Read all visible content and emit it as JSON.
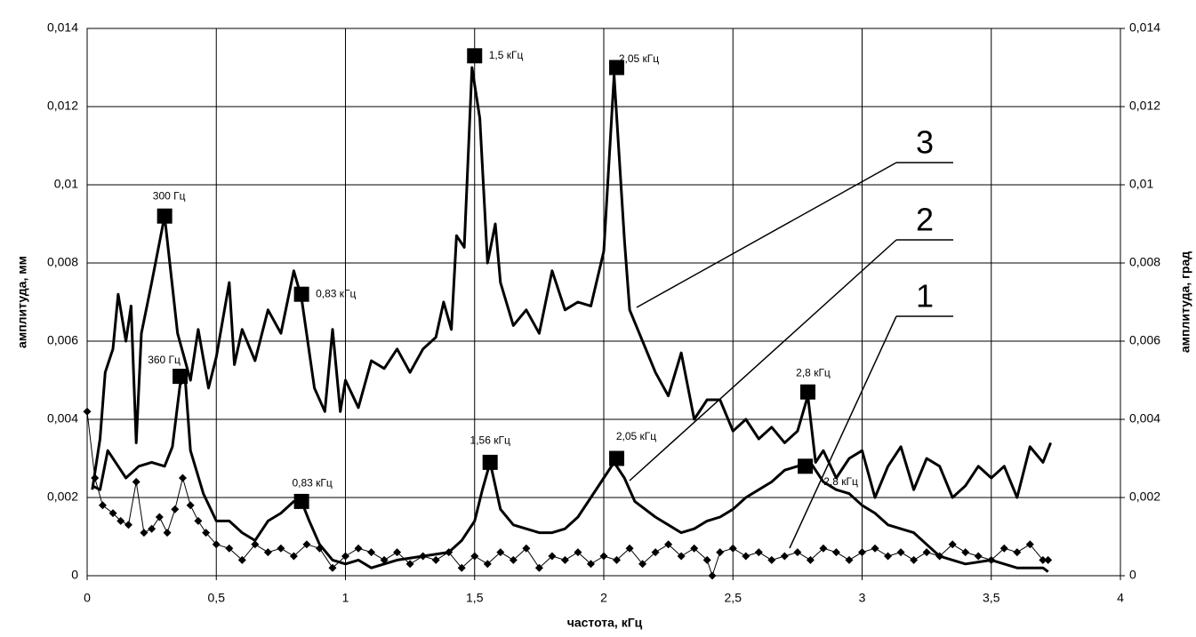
{
  "chart_data": {
    "type": "line",
    "xlabel": "частота, кГц",
    "ylabel": "амплитуда, мм",
    "y2label": "амплитуда, град",
    "xlim": [
      0,
      4
    ],
    "xticks": [
      0,
      {
        "value": 0.5,
        "label": "0,5"
      },
      1,
      {
        "value": 1.5,
        "label": "1,5"
      },
      2,
      {
        "value": 2.5,
        "label": "2,5"
      },
      3,
      {
        "value": 3.5,
        "label": "3,5"
      },
      4
    ],
    "ylim": [
      0,
      0.014
    ],
    "yticks": [
      0,
      {
        "value": 0.002,
        "label": "0,002"
      },
      {
        "value": 0.004,
        "label": "0,004"
      },
      {
        "value": 0.006,
        "label": "0,006"
      },
      {
        "value": 0.008,
        "label": "0,008"
      },
      {
        "value": 0.01,
        "label": "0,01"
      },
      {
        "value": 0.012,
        "label": "0,012"
      },
      {
        "value": 0.014,
        "label": "0,014"
      }
    ],
    "y2lim": [
      0,
      0.014
    ],
    "y2ticks": [
      0,
      {
        "value": 0.002,
        "label": "0,002"
      },
      {
        "value": 0.004,
        "label": "0,004"
      },
      {
        "value": 0.006,
        "label": "0,006"
      },
      {
        "value": 0.008,
        "label": "0,008"
      },
      {
        "value": 0.01,
        "label": "0,01"
      },
      {
        "value": 0.012,
        "label": "0,012"
      },
      {
        "value": 0.014,
        "label": "0,014"
      }
    ],
    "grid": true,
    "series": [
      {
        "name": "3",
        "color": "#000000",
        "x": [
          0.02,
          0.05,
          0.07,
          0.1,
          0.12,
          0.15,
          0.17,
          0.19,
          0.21,
          0.25,
          0.3,
          0.35,
          0.4,
          0.43,
          0.47,
          0.5,
          0.55,
          0.57,
          0.6,
          0.65,
          0.7,
          0.75,
          0.8,
          0.83,
          0.88,
          0.92,
          0.95,
          0.98,
          1.0,
          1.05,
          1.1,
          1.15,
          1.2,
          1.25,
          1.3,
          1.35,
          1.38,
          1.41,
          1.43,
          1.46,
          1.49,
          1.52,
          1.55,
          1.58,
          1.6,
          1.65,
          1.7,
          1.75,
          1.8,
          1.85,
          1.9,
          1.95,
          2.0,
          2.04,
          2.08,
          2.1,
          2.15,
          2.2,
          2.25,
          2.3,
          2.35,
          2.4,
          2.45,
          2.5,
          2.55,
          2.6,
          2.65,
          2.7,
          2.75,
          2.79,
          2.82,
          2.85,
          2.9,
          2.95,
          3.0,
          3.05,
          3.1,
          3.15,
          3.2,
          3.25,
          3.3,
          3.35,
          3.4,
          3.45,
          3.5,
          3.55,
          3.6,
          3.65,
          3.7,
          3.73
        ],
        "values": [
          0.0022,
          0.0035,
          0.0052,
          0.0058,
          0.0072,
          0.006,
          0.0069,
          0.0034,
          0.0062,
          0.0075,
          0.0092,
          0.0062,
          0.005,
          0.0063,
          0.0048,
          0.0056,
          0.0075,
          0.0054,
          0.0063,
          0.0055,
          0.0068,
          0.0062,
          0.0078,
          0.0071,
          0.0048,
          0.0042,
          0.0063,
          0.0042,
          0.005,
          0.0043,
          0.0055,
          0.0053,
          0.0058,
          0.0052,
          0.0058,
          0.0061,
          0.007,
          0.0063,
          0.0087,
          0.0084,
          0.013,
          0.0117,
          0.008,
          0.009,
          0.0075,
          0.0064,
          0.0068,
          0.0062,
          0.0078,
          0.0068,
          0.007,
          0.0069,
          0.0083,
          0.0128,
          0.0086,
          0.0068,
          0.006,
          0.0052,
          0.0046,
          0.0057,
          0.004,
          0.0045,
          0.0045,
          0.0037,
          0.004,
          0.0035,
          0.0038,
          0.0034,
          0.0037,
          0.0046,
          0.0029,
          0.0032,
          0.0025,
          0.003,
          0.0032,
          0.002,
          0.0028,
          0.0033,
          0.0022,
          0.003,
          0.0028,
          0.002,
          0.0023,
          0.0028,
          0.0025,
          0.0028,
          0.002,
          0.0033,
          0.0029,
          0.0034
        ]
      },
      {
        "name": "2",
        "color": "#000000",
        "x": [
          0.02,
          0.05,
          0.08,
          0.12,
          0.15,
          0.2,
          0.25,
          0.3,
          0.33,
          0.36,
          0.38,
          0.4,
          0.45,
          0.5,
          0.55,
          0.6,
          0.65,
          0.7,
          0.75,
          0.8,
          0.83,
          0.86,
          0.9,
          0.95,
          1.0,
          1.05,
          1.1,
          1.15,
          1.2,
          1.3,
          1.4,
          1.45,
          1.5,
          1.53,
          1.56,
          1.6,
          1.65,
          1.7,
          1.75,
          1.8,
          1.85,
          1.9,
          1.95,
          2.0,
          2.04,
          2.08,
          2.12,
          2.2,
          2.25,
          2.3,
          2.35,
          2.4,
          2.45,
          2.5,
          2.55,
          2.6,
          2.65,
          2.7,
          2.75,
          2.8,
          2.85,
          2.9,
          2.95,
          3.0,
          3.05,
          3.1,
          3.15,
          3.2,
          3.25,
          3.3,
          3.35,
          3.4,
          3.5,
          3.55,
          3.6,
          3.65,
          3.7,
          3.72
        ],
        "values": [
          0.0023,
          0.0022,
          0.0032,
          0.0028,
          0.0025,
          0.0028,
          0.0029,
          0.0028,
          0.0033,
          0.0049,
          0.005,
          0.0032,
          0.0021,
          0.0014,
          0.0014,
          0.0011,
          0.0009,
          0.0014,
          0.0016,
          0.0019,
          0.0019,
          0.0014,
          0.0008,
          0.0004,
          0.0003,
          0.0004,
          0.0002,
          0.0003,
          0.0004,
          0.0005,
          0.0006,
          0.0009,
          0.0014,
          0.0022,
          0.0029,
          0.0017,
          0.0013,
          0.0012,
          0.0011,
          0.0011,
          0.0012,
          0.0015,
          0.002,
          0.0025,
          0.0029,
          0.0025,
          0.0019,
          0.0015,
          0.0013,
          0.0011,
          0.0012,
          0.0014,
          0.0015,
          0.0017,
          0.002,
          0.0022,
          0.0024,
          0.0027,
          0.0028,
          0.0029,
          0.0024,
          0.0022,
          0.0021,
          0.0018,
          0.0016,
          0.0013,
          0.0012,
          0.0011,
          0.0008,
          0.0005,
          0.0004,
          0.0003,
          0.0004,
          0.0003,
          0.0002,
          0.0002,
          0.0002,
          0.0001
        ]
      },
      {
        "name": "1",
        "color": "#000000",
        "marker": "diamond",
        "x": [
          0,
          0.03,
          0.06,
          0.1,
          0.13,
          0.16,
          0.19,
          0.22,
          0.25,
          0.28,
          0.31,
          0.34,
          0.37,
          0.4,
          0.43,
          0.46,
          0.5,
          0.55,
          0.6,
          0.65,
          0.7,
          0.75,
          0.8,
          0.85,
          0.9,
          0.95,
          1.0,
          1.05,
          1.1,
          1.15,
          1.2,
          1.25,
          1.3,
          1.35,
          1.4,
          1.45,
          1.5,
          1.55,
          1.6,
          1.65,
          1.7,
          1.75,
          1.8,
          1.85,
          1.9,
          1.95,
          2.0,
          2.05,
          2.1,
          2.15,
          2.2,
          2.25,
          2.3,
          2.35,
          2.4,
          2.42,
          2.45,
          2.5,
          2.55,
          2.6,
          2.65,
          2.7,
          2.75,
          2.8,
          2.85,
          2.9,
          2.95,
          3.0,
          3.05,
          3.1,
          3.15,
          3.2,
          3.25,
          3.3,
          3.35,
          3.4,
          3.45,
          3.5,
          3.55,
          3.6,
          3.65,
          3.7,
          3.72
        ],
        "values": [
          0.0042,
          0.0025,
          0.0018,
          0.0016,
          0.0014,
          0.0013,
          0.0024,
          0.0011,
          0.0012,
          0.0015,
          0.0011,
          0.0017,
          0.0025,
          0.0018,
          0.0014,
          0.0011,
          0.0008,
          0.0007,
          0.0004,
          0.0008,
          0.0006,
          0.0007,
          0.0005,
          0.0008,
          0.0007,
          0.0002,
          0.0005,
          0.0007,
          0.0006,
          0.0004,
          0.0006,
          0.0003,
          0.0005,
          0.0004,
          0.0006,
          0.0002,
          0.0005,
          0.0003,
          0.0006,
          0.0004,
          0.0007,
          0.0002,
          0.0005,
          0.0004,
          0.0006,
          0.0003,
          0.0005,
          0.0004,
          0.0007,
          0.0003,
          0.0006,
          0.0008,
          0.0005,
          0.0007,
          0.0004,
          0,
          0.0006,
          0.0007,
          0.0005,
          0.0006,
          0.0004,
          0.0005,
          0.0006,
          0.0004,
          0.0007,
          0.0006,
          0.0004,
          0.0006,
          0.0007,
          0.0005,
          0.0006,
          0.0004,
          0.0006,
          0.0005,
          0.0008,
          0.0006,
          0.0005,
          0.0004,
          0.0007,
          0.0006,
          0.0008,
          0.0004,
          0.0004
        ]
      }
    ],
    "annotations": [
      {
        "x": 0.3,
        "y": 0.0092,
        "label": "300 Гц"
      },
      {
        "x": 0.83,
        "y": 0.0072,
        "label": "0,83 кГц"
      },
      {
        "x": 1.5,
        "y": 0.0133,
        "label": "1,5 кГц"
      },
      {
        "x": 2.05,
        "y": 0.013,
        "label": "2,05 кГц"
      },
      {
        "x": 2.79,
        "y": 0.0047,
        "label": "2,8 кГц"
      },
      {
        "x": 0.36,
        "y": 0.0051,
        "label": "360 Гц"
      },
      {
        "x": 0.83,
        "y": 0.0019,
        "label": "0,83 кГц"
      },
      {
        "x": 1.56,
        "y": 0.0029,
        "label": "1,56 кГц"
      },
      {
        "x": 2.05,
        "y": 0.003,
        "label": "2,05 кГц"
      },
      {
        "x": 2.78,
        "y": 0.0028,
        "label": "2,8 кГц"
      }
    ]
  }
}
